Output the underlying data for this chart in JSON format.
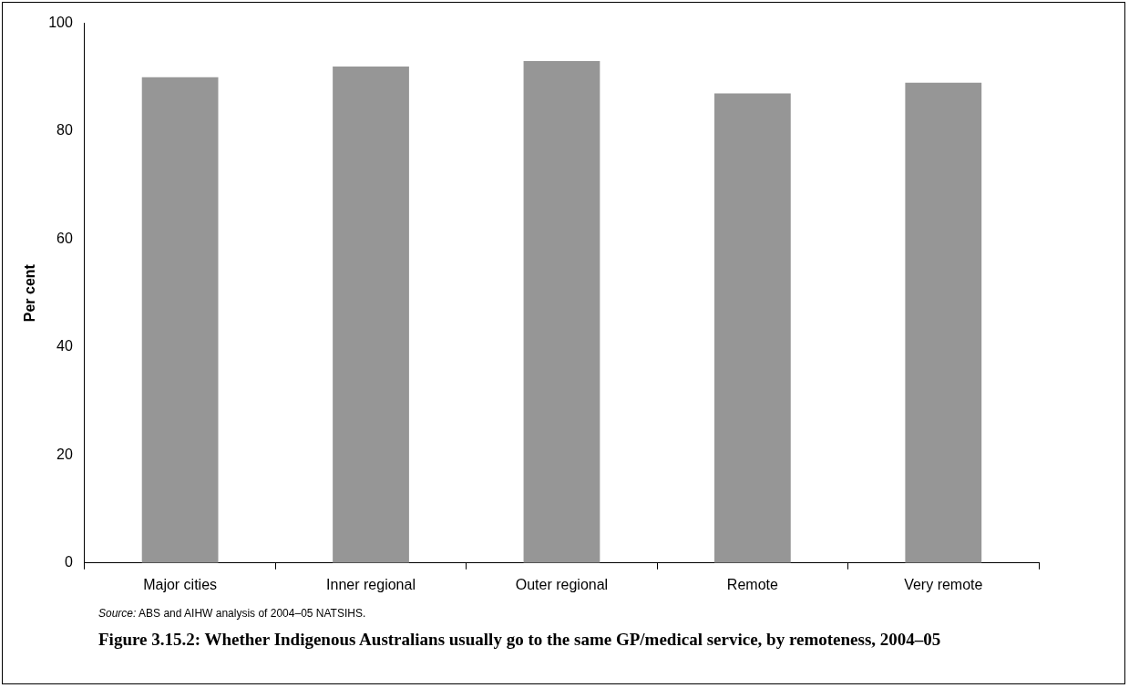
{
  "chart_data": {
    "type": "bar",
    "title": "Figure 3.15.2: Whether Indigenous Australians usually go to the same GP/medical service, by remoteness, 2004–05",
    "ylabel": "Per cent",
    "categories": [
      "Major cities",
      "Inner regional",
      "Outer regional",
      "Remote",
      "Very remote"
    ],
    "values": [
      90,
      92,
      93,
      87,
      89
    ],
    "color": "#969696",
    "ylim": [
      0,
      100
    ],
    "yticks": [
      0,
      20,
      40,
      60,
      80,
      100
    ],
    "grid": false,
    "legend": false,
    "annotations": [
      "Source: ABS and AIHW analysis of 2004–05 NATSIHS."
    ]
  }
}
